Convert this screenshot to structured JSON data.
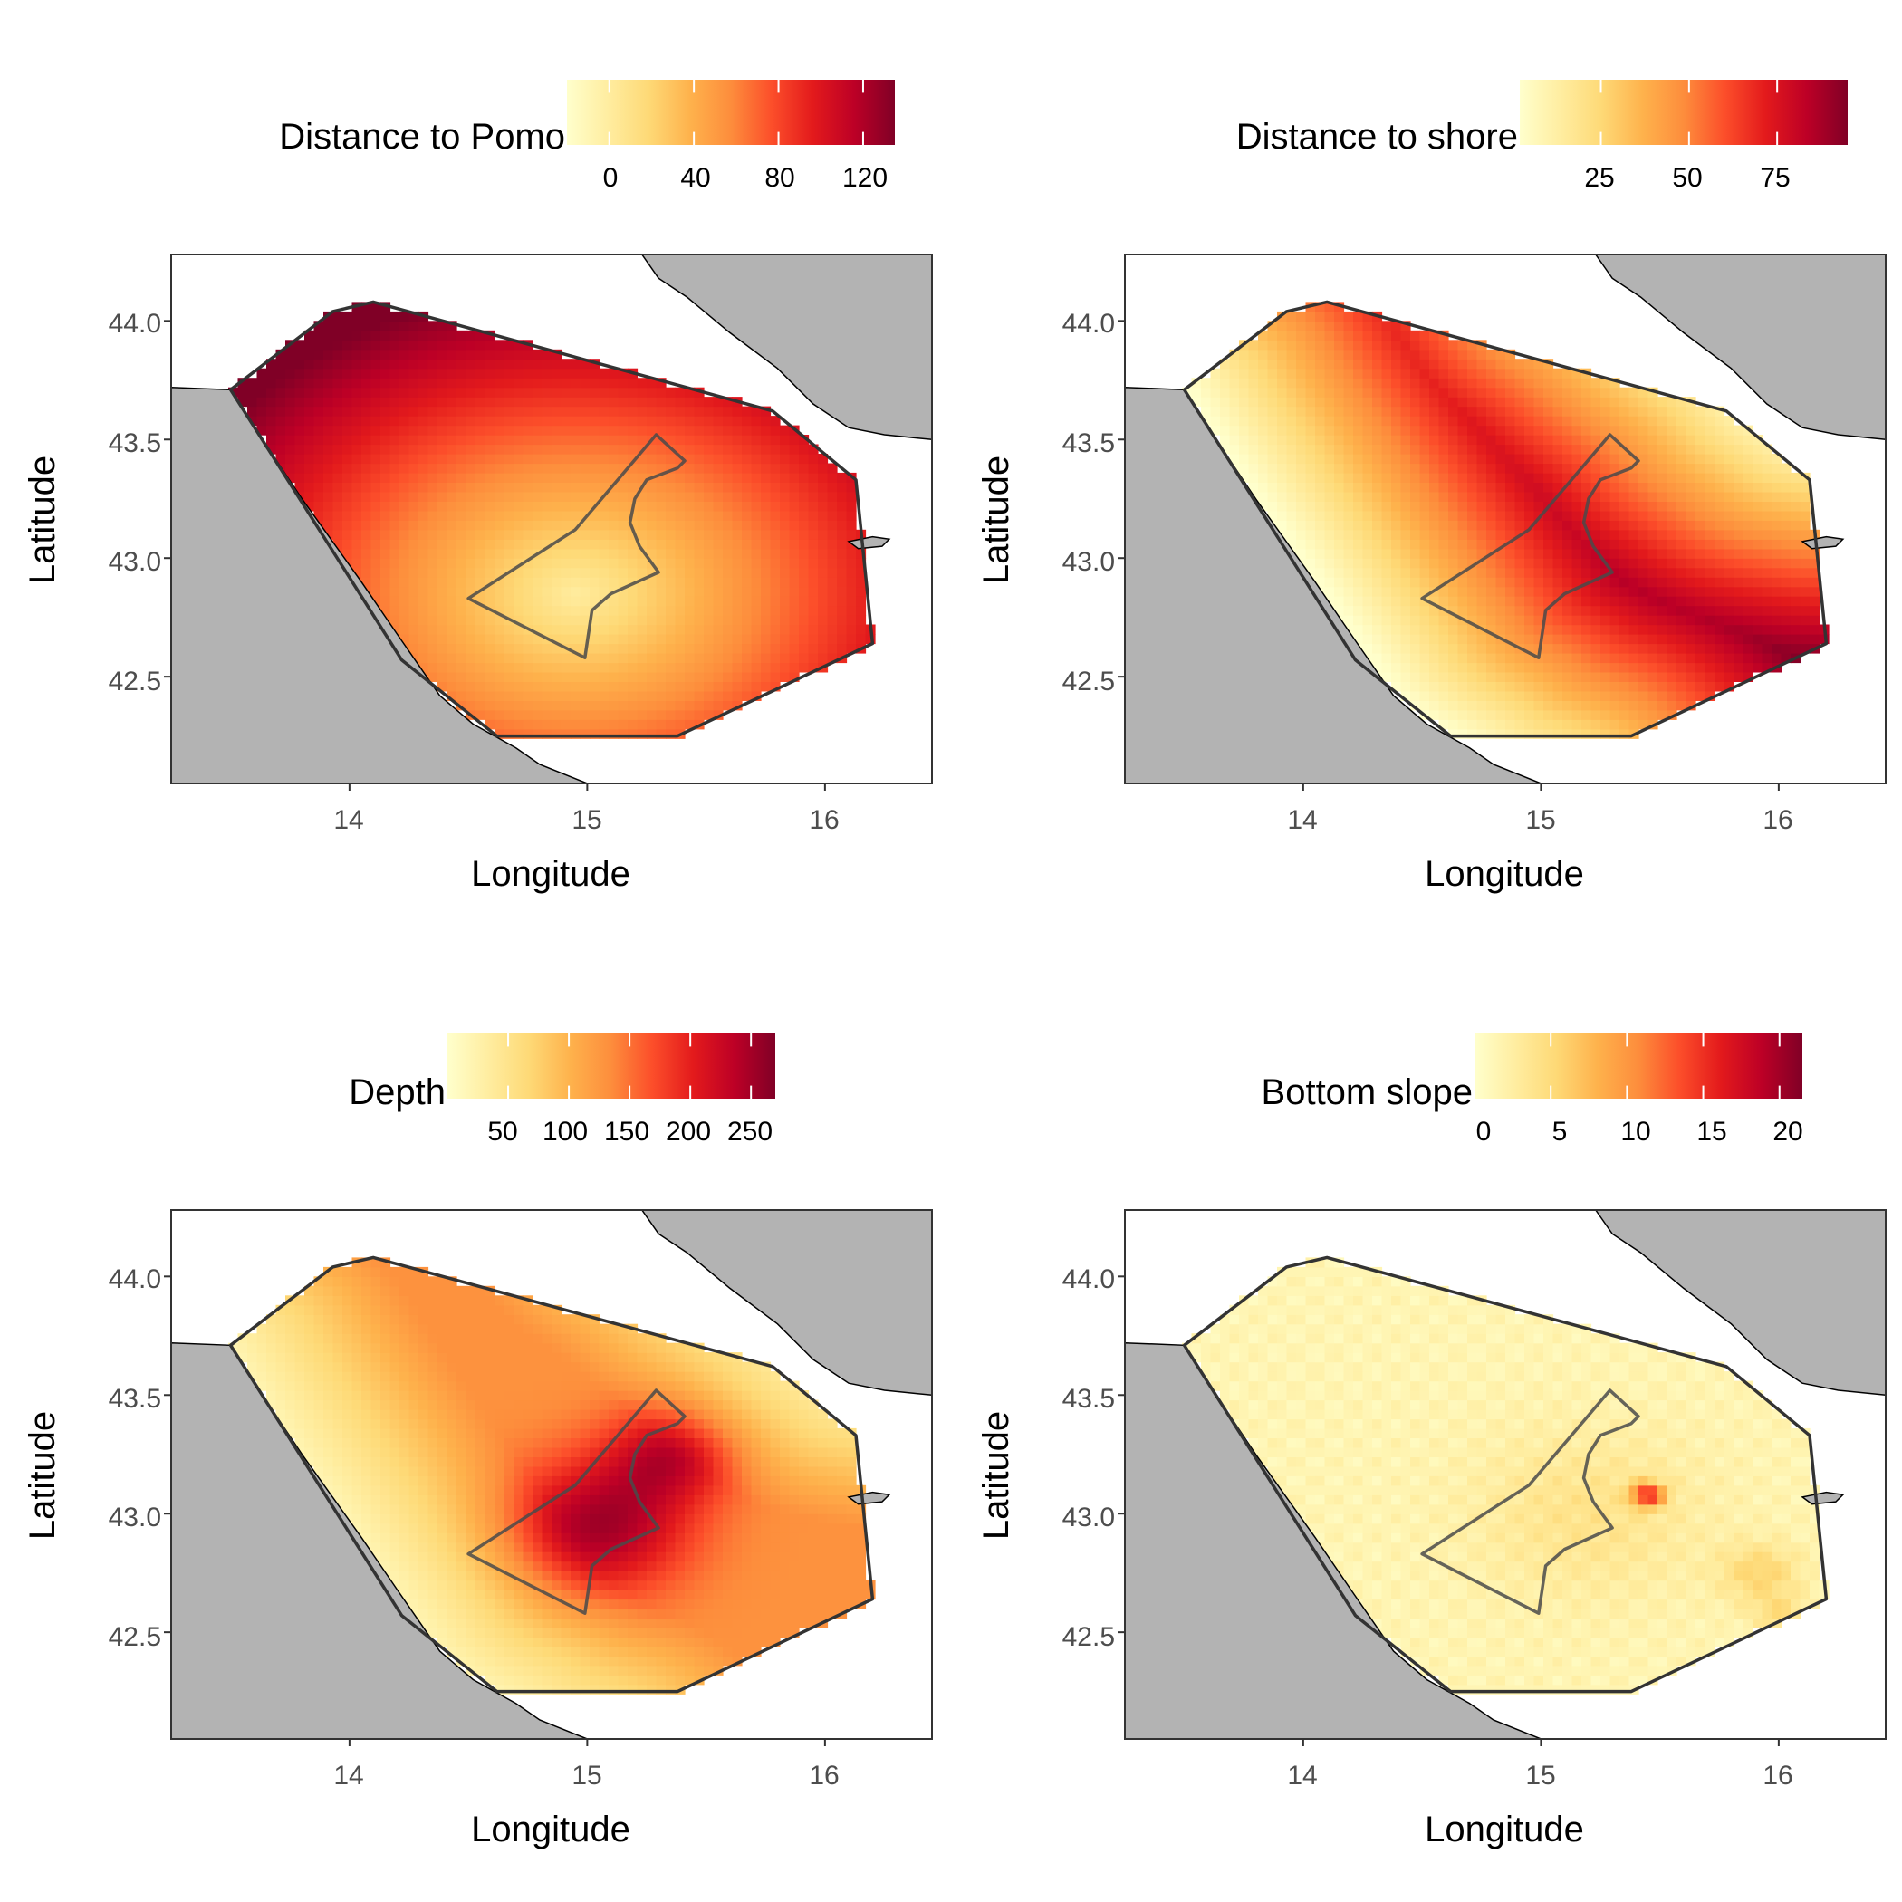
{
  "chart_data": [
    {
      "type": "heatmap",
      "panel": "top-left",
      "legend_title": "Distance to Pomo",
      "legend_ticks": [
        "0",
        "40",
        "80",
        "120"
      ],
      "legend_range": [
        -20,
        135
      ],
      "legend_tick_values": [
        0,
        40,
        80,
        120
      ],
      "xlabel": "Longitude",
      "ylabel": "Latitude",
      "x_ticks": [
        "14",
        "15",
        "16"
      ],
      "y_ticks": [
        "42.5",
        "43.0",
        "43.5",
        "44.0"
      ],
      "xlim": [
        13.25,
        16.45
      ],
      "ylim": [
        42.05,
        44.28
      ],
      "field": "pomo",
      "colormap": "YlOrRd"
    },
    {
      "type": "heatmap",
      "panel": "top-right",
      "legend_title": "Distance to shore",
      "legend_ticks": [
        "25",
        "50",
        "75"
      ],
      "legend_range": [
        2,
        95
      ],
      "legend_tick_values": [
        25,
        50,
        75
      ],
      "xlabel": "Longitude",
      "ylabel": "Latitude",
      "x_ticks": [
        "14",
        "15",
        "16"
      ],
      "y_ticks": [
        "42.5",
        "43.0",
        "43.5",
        "44.0"
      ],
      "xlim": [
        13.25,
        16.45
      ],
      "ylim": [
        42.05,
        44.28
      ],
      "field": "shore",
      "colormap": "YlOrRd"
    },
    {
      "type": "heatmap",
      "panel": "bottom-left",
      "legend_title": "Depth",
      "legend_ticks": [
        "50",
        "100",
        "150",
        "200",
        "250"
      ],
      "legend_range": [
        0,
        270
      ],
      "legend_tick_values": [
        50,
        100,
        150,
        200,
        250
      ],
      "xlabel": "Longitude",
      "ylabel": "Latitude",
      "x_ticks": [
        "14",
        "15",
        "16"
      ],
      "y_ticks": [
        "42.5",
        "43.0",
        "43.5",
        "44.0"
      ],
      "xlim": [
        13.25,
        16.45
      ],
      "ylim": [
        42.05,
        44.28
      ],
      "field": "depth",
      "colormap": "YlOrRd"
    },
    {
      "type": "heatmap",
      "panel": "bottom-right",
      "legend_title": "Bottom slope",
      "legend_ticks": [
        "0",
        "5",
        "10",
        "15",
        "20"
      ],
      "legend_range": [
        0,
        21.5
      ],
      "legend_tick_values": [
        0,
        5,
        10,
        15,
        20
      ],
      "xlabel": "Longitude",
      "ylabel": "Latitude",
      "x_ticks": [
        "14",
        "15",
        "16"
      ],
      "y_ticks": [
        "42.5",
        "43.0",
        "43.5",
        "44.0"
      ],
      "xlim": [
        13.25,
        16.45
      ],
      "ylim": [
        42.05,
        44.28
      ],
      "field": "slope",
      "colormap": "YlOrRd"
    }
  ],
  "map_features": {
    "land_color": "#b3b3b3",
    "outline_color": "#333333",
    "palette": [
      "#ffffcc",
      "#ffeda0",
      "#fed976",
      "#feb24c",
      "#fd8d3c",
      "#fc4e2a",
      "#e31a1c",
      "#bd0026",
      "#800026"
    ],
    "study_area_polygon": [
      [
        13.5,
        43.71
      ],
      [
        13.93,
        44.04
      ],
      [
        14.1,
        44.08
      ],
      [
        15.78,
        43.62
      ],
      [
        16.13,
        43.33
      ],
      [
        16.2,
        42.64
      ],
      [
        15.78,
        42.44
      ],
      [
        15.38,
        42.25
      ],
      [
        14.62,
        42.25
      ],
      [
        14.22,
        42.57
      ],
      [
        13.5,
        43.71
      ]
    ],
    "pomo_polygon": [
      [
        14.5,
        42.83
      ],
      [
        14.95,
        43.12
      ],
      [
        15.29,
        43.52
      ],
      [
        15.41,
        43.41
      ],
      [
        15.38,
        43.38
      ],
      [
        15.25,
        43.33
      ],
      [
        15.2,
        43.25
      ],
      [
        15.18,
        43.15
      ],
      [
        15.22,
        43.05
      ],
      [
        15.3,
        42.94
      ],
      [
        15.1,
        42.85
      ],
      [
        15.02,
        42.78
      ],
      [
        14.99,
        42.58
      ],
      [
        14.5,
        42.83
      ]
    ]
  }
}
